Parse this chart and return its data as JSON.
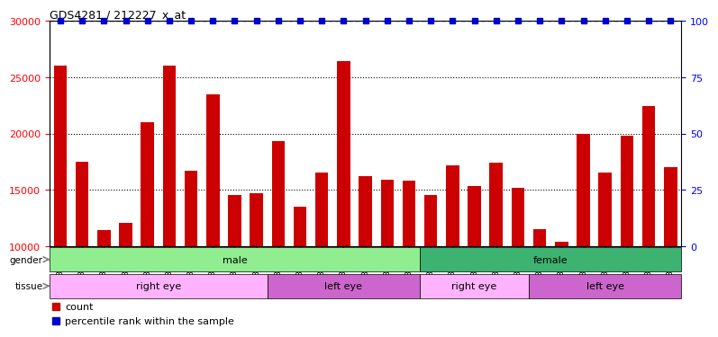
{
  "title": "GDS4281 / 212227_x_at",
  "samples": [
    "GSM685471",
    "GSM685472",
    "GSM685473",
    "GSM685601",
    "GSM685650",
    "GSM685651",
    "GSM686961",
    "GSM686962",
    "GSM686988",
    "GSM686990",
    "GSM685522",
    "GSM685523",
    "GSM685603",
    "GSM686963",
    "GSM686986",
    "GSM686989",
    "GSM686991",
    "GSM685474",
    "GSM685602",
    "GSM686984",
    "GSM686985",
    "GSM686987",
    "GSM687004",
    "GSM685470",
    "GSM685475",
    "GSM685652",
    "GSM687001",
    "GSM687002",
    "GSM687003"
  ],
  "counts": [
    26000,
    17500,
    11400,
    12100,
    21000,
    26000,
    16700,
    23500,
    14500,
    14700,
    19300,
    13500,
    16500,
    26400,
    16200,
    15900,
    15800,
    14500,
    17200,
    15300,
    17400,
    15200,
    11500,
    10400,
    20000,
    16500,
    19800,
    22400,
    17000
  ],
  "gender_groups": [
    {
      "label": "male",
      "start": 0,
      "end": 17,
      "color": "#90EE90"
    },
    {
      "label": "female",
      "start": 17,
      "end": 29,
      "color": "#3CB371"
    }
  ],
  "tissue_groups": [
    {
      "label": "right eye",
      "start": 0,
      "end": 10,
      "color": "#FFB3FF"
    },
    {
      "label": "left eye",
      "start": 10,
      "end": 17,
      "color": "#CC66CC"
    },
    {
      "label": "right eye",
      "start": 17,
      "end": 22,
      "color": "#FFB3FF"
    },
    {
      "label": "left eye",
      "start": 22,
      "end": 29,
      "color": "#CC66CC"
    }
  ],
  "bar_color": "#CC0000",
  "dot_color": "#0000CC",
  "ylim_left": [
    10000,
    30000
  ],
  "ylim_right": [
    0,
    100
  ],
  "yticks_left": [
    10000,
    15000,
    20000,
    25000,
    30000
  ],
  "yticks_right": [
    0,
    25,
    50,
    75,
    100
  ],
  "grid_dotted_at": [
    15000,
    20000,
    25000
  ],
  "legend_count_color": "#CC0000",
  "legend_dot_color": "#0000CC"
}
